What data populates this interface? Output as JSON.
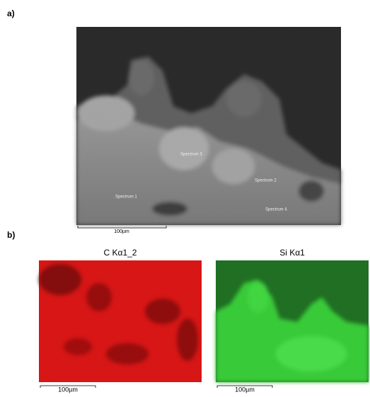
{
  "panel_a": {
    "label": "a)",
    "spectra": [
      "Spectrum 3",
      "Spectrum 2",
      "Spectrum 1",
      "Spectrum 4"
    ],
    "scale_bar": "100µm"
  },
  "panel_b": {
    "label": "b)",
    "maps": [
      {
        "title": "C Kα1_2",
        "scale_bar": "100µm"
      },
      {
        "title": "Si Kα1",
        "scale_bar": "100µm"
      }
    ]
  }
}
